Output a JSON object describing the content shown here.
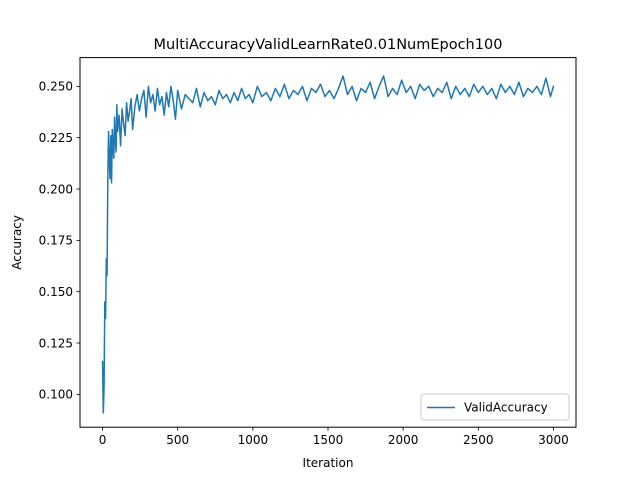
{
  "chart_data": {
    "type": "line",
    "title": "MultiAccuracyValidLearnRate0.01NumEpoch100",
    "xlabel": "Iteration",
    "ylabel": "Accuracy",
    "xlim": [
      -150,
      3150
    ],
    "ylim": [
      0.084,
      0.264
    ],
    "x_ticks": [
      0,
      500,
      1000,
      1500,
      2000,
      2500,
      3000
    ],
    "x_tick_labels": [
      "0",
      "500",
      "1000",
      "1500",
      "2000",
      "2500",
      "3000"
    ],
    "y_ticks": [
      0.1,
      0.125,
      0.15,
      0.175,
      0.2,
      0.225,
      0.25
    ],
    "y_tick_labels": [
      "0.100",
      "0.125",
      "0.150",
      "0.175",
      "0.200",
      "0.225",
      "0.250"
    ],
    "grid": false,
    "legend_position": "lower-right",
    "series": [
      {
        "name": "ValidAccuracy",
        "color": "#1f77b4",
        "x": [
          0,
          5,
          10,
          15,
          20,
          25,
          30,
          35,
          40,
          45,
          50,
          55,
          60,
          65,
          70,
          75,
          80,
          85,
          90,
          95,
          100,
          110,
          120,
          130,
          140,
          150,
          160,
          170,
          180,
          190,
          200,
          215,
          230,
          245,
          260,
          275,
          290,
          305,
          320,
          335,
          350,
          365,
          380,
          395,
          410,
          425,
          440,
          455,
          470,
          485,
          500,
          525,
          550,
          575,
          600,
          625,
          650,
          675,
          700,
          725,
          750,
          775,
          800,
          825,
          850,
          875,
          900,
          925,
          950,
          975,
          1000,
          1030,
          1060,
          1090,
          1120,
          1150,
          1180,
          1210,
          1240,
          1270,
          1300,
          1330,
          1360,
          1390,
          1420,
          1450,
          1480,
          1510,
          1540,
          1570,
          1600,
          1630,
          1660,
          1690,
          1720,
          1750,
          1780,
          1810,
          1840,
          1870,
          1900,
          1930,
          1960,
          1990,
          2020,
          2050,
          2080,
          2110,
          2140,
          2170,
          2200,
          2230,
          2260,
          2290,
          2320,
          2350,
          2380,
          2410,
          2440,
          2470,
          2500,
          2530,
          2560,
          2590,
          2620,
          2650,
          2680,
          2710,
          2740,
          2770,
          2800,
          2830,
          2860,
          2890,
          2920,
          2950,
          2980,
          3000
        ],
        "values": [
          0.116,
          0.091,
          0.103,
          0.145,
          0.137,
          0.166,
          0.158,
          0.205,
          0.228,
          0.214,
          0.205,
          0.226,
          0.203,
          0.229,
          0.22,
          0.215,
          0.235,
          0.224,
          0.218,
          0.241,
          0.228,
          0.236,
          0.221,
          0.239,
          0.232,
          0.226,
          0.242,
          0.233,
          0.238,
          0.244,
          0.229,
          0.24,
          0.246,
          0.238,
          0.244,
          0.248,
          0.235,
          0.25,
          0.242,
          0.246,
          0.238,
          0.249,
          0.241,
          0.245,
          0.236,
          0.247,
          0.24,
          0.25,
          0.243,
          0.234,
          0.248,
          0.239,
          0.246,
          0.244,
          0.242,
          0.249,
          0.24,
          0.247,
          0.243,
          0.245,
          0.241,
          0.248,
          0.244,
          0.246,
          0.242,
          0.247,
          0.243,
          0.249,
          0.244,
          0.246,
          0.242,
          0.25,
          0.245,
          0.247,
          0.243,
          0.249,
          0.245,
          0.251,
          0.244,
          0.248,
          0.246,
          0.25,
          0.243,
          0.249,
          0.247,
          0.251,
          0.245,
          0.248,
          0.244,
          0.249,
          0.255,
          0.246,
          0.25,
          0.243,
          0.249,
          0.247,
          0.252,
          0.244,
          0.25,
          0.255,
          0.245,
          0.249,
          0.246,
          0.253,
          0.247,
          0.25,
          0.244,
          0.251,
          0.248,
          0.25,
          0.245,
          0.249,
          0.247,
          0.252,
          0.244,
          0.25,
          0.246,
          0.249,
          0.245,
          0.251,
          0.247,
          0.25,
          0.246,
          0.249,
          0.244,
          0.251,
          0.247,
          0.25,
          0.246,
          0.252,
          0.245,
          0.249,
          0.247,
          0.25,
          0.246,
          0.254,
          0.245,
          0.25
        ]
      }
    ]
  }
}
